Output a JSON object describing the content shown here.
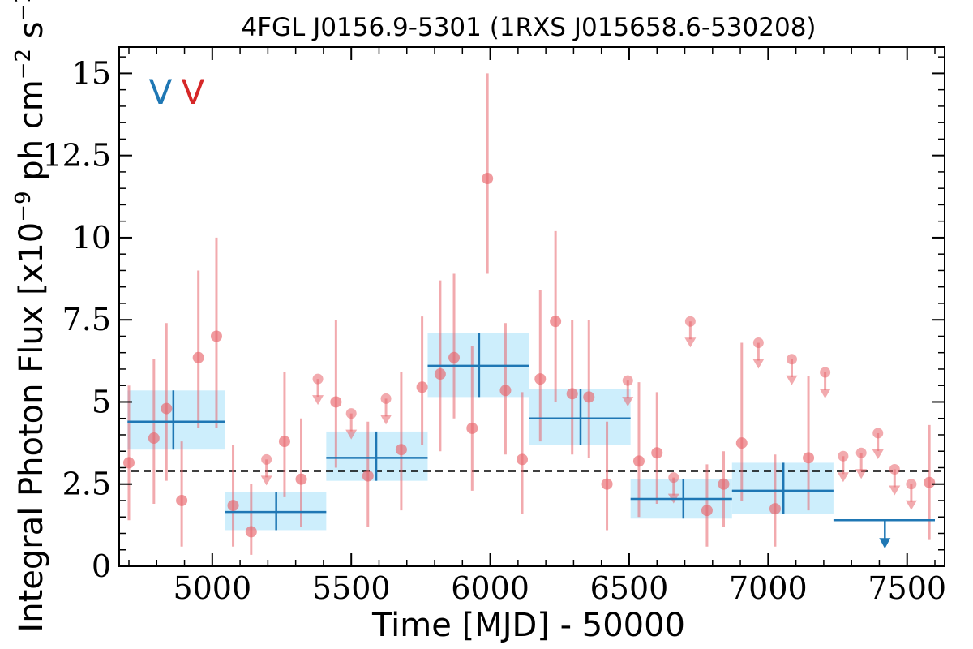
{
  "chart_data": {
    "type": "scatter",
    "title": "4FGL J0156.9-5301 (1RXS J015658.6-530208)",
    "xlabel": "Time [MJD] - 50000",
    "ylabel": "Integral Photon Flux [x10$^{-9}$ ph cm$^{-2}$ s$^{-1}$]",
    "xlim": [
      4665,
      7635
    ],
    "ylim": [
      0,
      15.8
    ],
    "x_ticks": [
      5000,
      5500,
      6000,
      6500,
      7000,
      7500
    ],
    "x_tick_labels": [
      "5000",
      "5500",
      "6000",
      "6500",
      "7000",
      "7500"
    ],
    "y_ticks": [
      0,
      2.5,
      5,
      7.5,
      10,
      12.5,
      15
    ],
    "y_tick_labels": [
      "0",
      "2.5",
      "5",
      "7.5",
      "10",
      "12.5",
      "15"
    ],
    "grid": false,
    "legend": {
      "position": "top-left",
      "entries": [
        {
          "label": "V",
          "color": "#1f77b4"
        },
        {
          "label": "V",
          "color": "#d62728"
        }
      ]
    },
    "reference_line": {
      "y": 2.9,
      "style": "dashed",
      "color": "#000000"
    },
    "series": [
      {
        "color": "#e8656b",
        "marker": "circle",
        "points": [
          {
            "x": 4700,
            "y": 3.15,
            "ylo": 1.4,
            "yhi": 5.5
          },
          {
            "x": 4790,
            "y": 3.9,
            "ylo": 1.9,
            "yhi": 6.3
          },
          {
            "x": 4835,
            "y": 4.8,
            "ylo": 2.6,
            "yhi": 7.4
          },
          {
            "x": 4890,
            "y": 2.0,
            "ylo": 0.6,
            "yhi": 3.8
          },
          {
            "x": 4950,
            "y": 6.35,
            "ylo": 4.2,
            "yhi": 9.0
          },
          {
            "x": 5015,
            "y": 7.0,
            "ylo": 4.2,
            "yhi": 10.0
          },
          {
            "x": 5075,
            "y": 1.85,
            "ylo": 0.6,
            "yhi": 3.7
          },
          {
            "x": 5140,
            "y": 1.05,
            "ylo": 0.35,
            "yhi": 2.5
          },
          {
            "x": 5260,
            "y": 3.8,
            "ylo": 2.1,
            "yhi": 5.9
          },
          {
            "x": 5320,
            "y": 2.65,
            "ylo": 1.2,
            "yhi": 4.5
          },
          {
            "x": 5445,
            "y": 5.0,
            "ylo": 3.0,
            "yhi": 7.5
          },
          {
            "x": 5560,
            "y": 2.75,
            "ylo": 1.2,
            "yhi": 4.4
          },
          {
            "x": 5680,
            "y": 3.55,
            "ylo": 1.7,
            "yhi": 5.9
          },
          {
            "x": 5755,
            "y": 5.45,
            "ylo": 3.7,
            "yhi": 7.6
          },
          {
            "x": 5820,
            "y": 5.85,
            "ylo": 3.5,
            "yhi": 8.7
          },
          {
            "x": 5870,
            "y": 6.35,
            "ylo": 4.5,
            "yhi": 8.9
          },
          {
            "x": 5935,
            "y": 4.2,
            "ylo": 2.3,
            "yhi": 6.7
          },
          {
            "x": 5990,
            "y": 11.8,
            "ylo": 8.9,
            "yhi": 15.0
          },
          {
            "x": 6055,
            "y": 5.35,
            "ylo": 3.4,
            "yhi": 7.4
          },
          {
            "x": 6115,
            "y": 3.25,
            "ylo": 1.6,
            "yhi": 5.3
          },
          {
            "x": 6180,
            "y": 5.7,
            "ylo": 3.8,
            "yhi": 8.4
          },
          {
            "x": 6235,
            "y": 7.45,
            "ylo": 5.0,
            "yhi": 10.2
          },
          {
            "x": 6295,
            "y": 5.25,
            "ylo": 3.4,
            "yhi": 7.5
          },
          {
            "x": 6355,
            "y": 5.15,
            "ylo": 3.3,
            "yhi": 7.5
          },
          {
            "x": 6420,
            "y": 2.5,
            "ylo": 1.1,
            "yhi": 4.4
          },
          {
            "x": 6535,
            "y": 3.2,
            "ylo": 1.5,
            "yhi": 5.6
          },
          {
            "x": 6600,
            "y": 3.45,
            "ylo": 1.9,
            "yhi": 5.3
          },
          {
            "x": 6780,
            "y": 1.7,
            "ylo": 0.6,
            "yhi": 3.1
          },
          {
            "x": 6840,
            "y": 2.5,
            "ylo": 1.2,
            "yhi": 3.5
          },
          {
            "x": 6905,
            "y": 3.75,
            "ylo": 2.0,
            "yhi": 6.8
          },
          {
            "x": 7025,
            "y": 1.75,
            "ylo": 0.6,
            "yhi": 3.4
          },
          {
            "x": 7145,
            "y": 3.3,
            "ylo": 1.7,
            "yhi": 5.8
          },
          {
            "x": 7580,
            "y": 2.55,
            "ylo": 0.8,
            "yhi": 4.3
          }
        ]
      },
      {
        "color": "#e8656b",
        "marker": "upper-limit",
        "points": [
          {
            "x": 5380,
            "y": 5.7
          },
          {
            "x": 5195,
            "y": 3.25
          },
          {
            "x": 5500,
            "y": 4.65
          },
          {
            "x": 5625,
            "y": 5.1
          },
          {
            "x": 6495,
            "y": 5.65
          },
          {
            "x": 6660,
            "y": 2.7
          },
          {
            "x": 6720,
            "y": 7.45
          },
          {
            "x": 6965,
            "y": 6.8
          },
          {
            "x": 7085,
            "y": 6.3
          },
          {
            "x": 7205,
            "y": 5.9
          },
          {
            "x": 7270,
            "y": 3.35
          },
          {
            "x": 7335,
            "y": 3.45
          },
          {
            "x": 7395,
            "y": 4.05
          },
          {
            "x": 7455,
            "y": 2.95
          },
          {
            "x": 7515,
            "y": 2.5
          }
        ]
      },
      {
        "color": "#1f77b4",
        "marker": "bin",
        "band_color": "#cdeefc",
        "bins": [
          {
            "x0": 4695,
            "x1": 5045,
            "y": 4.4,
            "ylo": 3.55,
            "yhi": 5.35,
            "xmid": 4860
          },
          {
            "x0": 5045,
            "x1": 5410,
            "y": 1.65,
            "ylo": 1.1,
            "yhi": 2.25,
            "xmid": 5230
          },
          {
            "x0": 5410,
            "x1": 5775,
            "y": 3.3,
            "ylo": 2.6,
            "yhi": 4.1,
            "xmid": 5590
          },
          {
            "x0": 5775,
            "x1": 6140,
            "y": 6.1,
            "ylo": 5.15,
            "yhi": 7.1,
            "xmid": 5960
          },
          {
            "x0": 6140,
            "x1": 6505,
            "y": 4.5,
            "ylo": 3.7,
            "yhi": 5.4,
            "xmid": 6325
          },
          {
            "x0": 6505,
            "x1": 6870,
            "y": 2.05,
            "ylo": 1.45,
            "yhi": 2.65,
            "xmid": 6695
          },
          {
            "x0": 6870,
            "x1": 7235,
            "y": 2.3,
            "ylo": 1.6,
            "yhi": 3.15,
            "xmid": 7055
          }
        ]
      },
      {
        "color": "#1f77b4",
        "marker": "bin-upper-limit",
        "bins": [
          {
            "x0": 7235,
            "x1": 7600,
            "y": 1.4,
            "xmid": 7420
          }
        ]
      }
    ]
  }
}
